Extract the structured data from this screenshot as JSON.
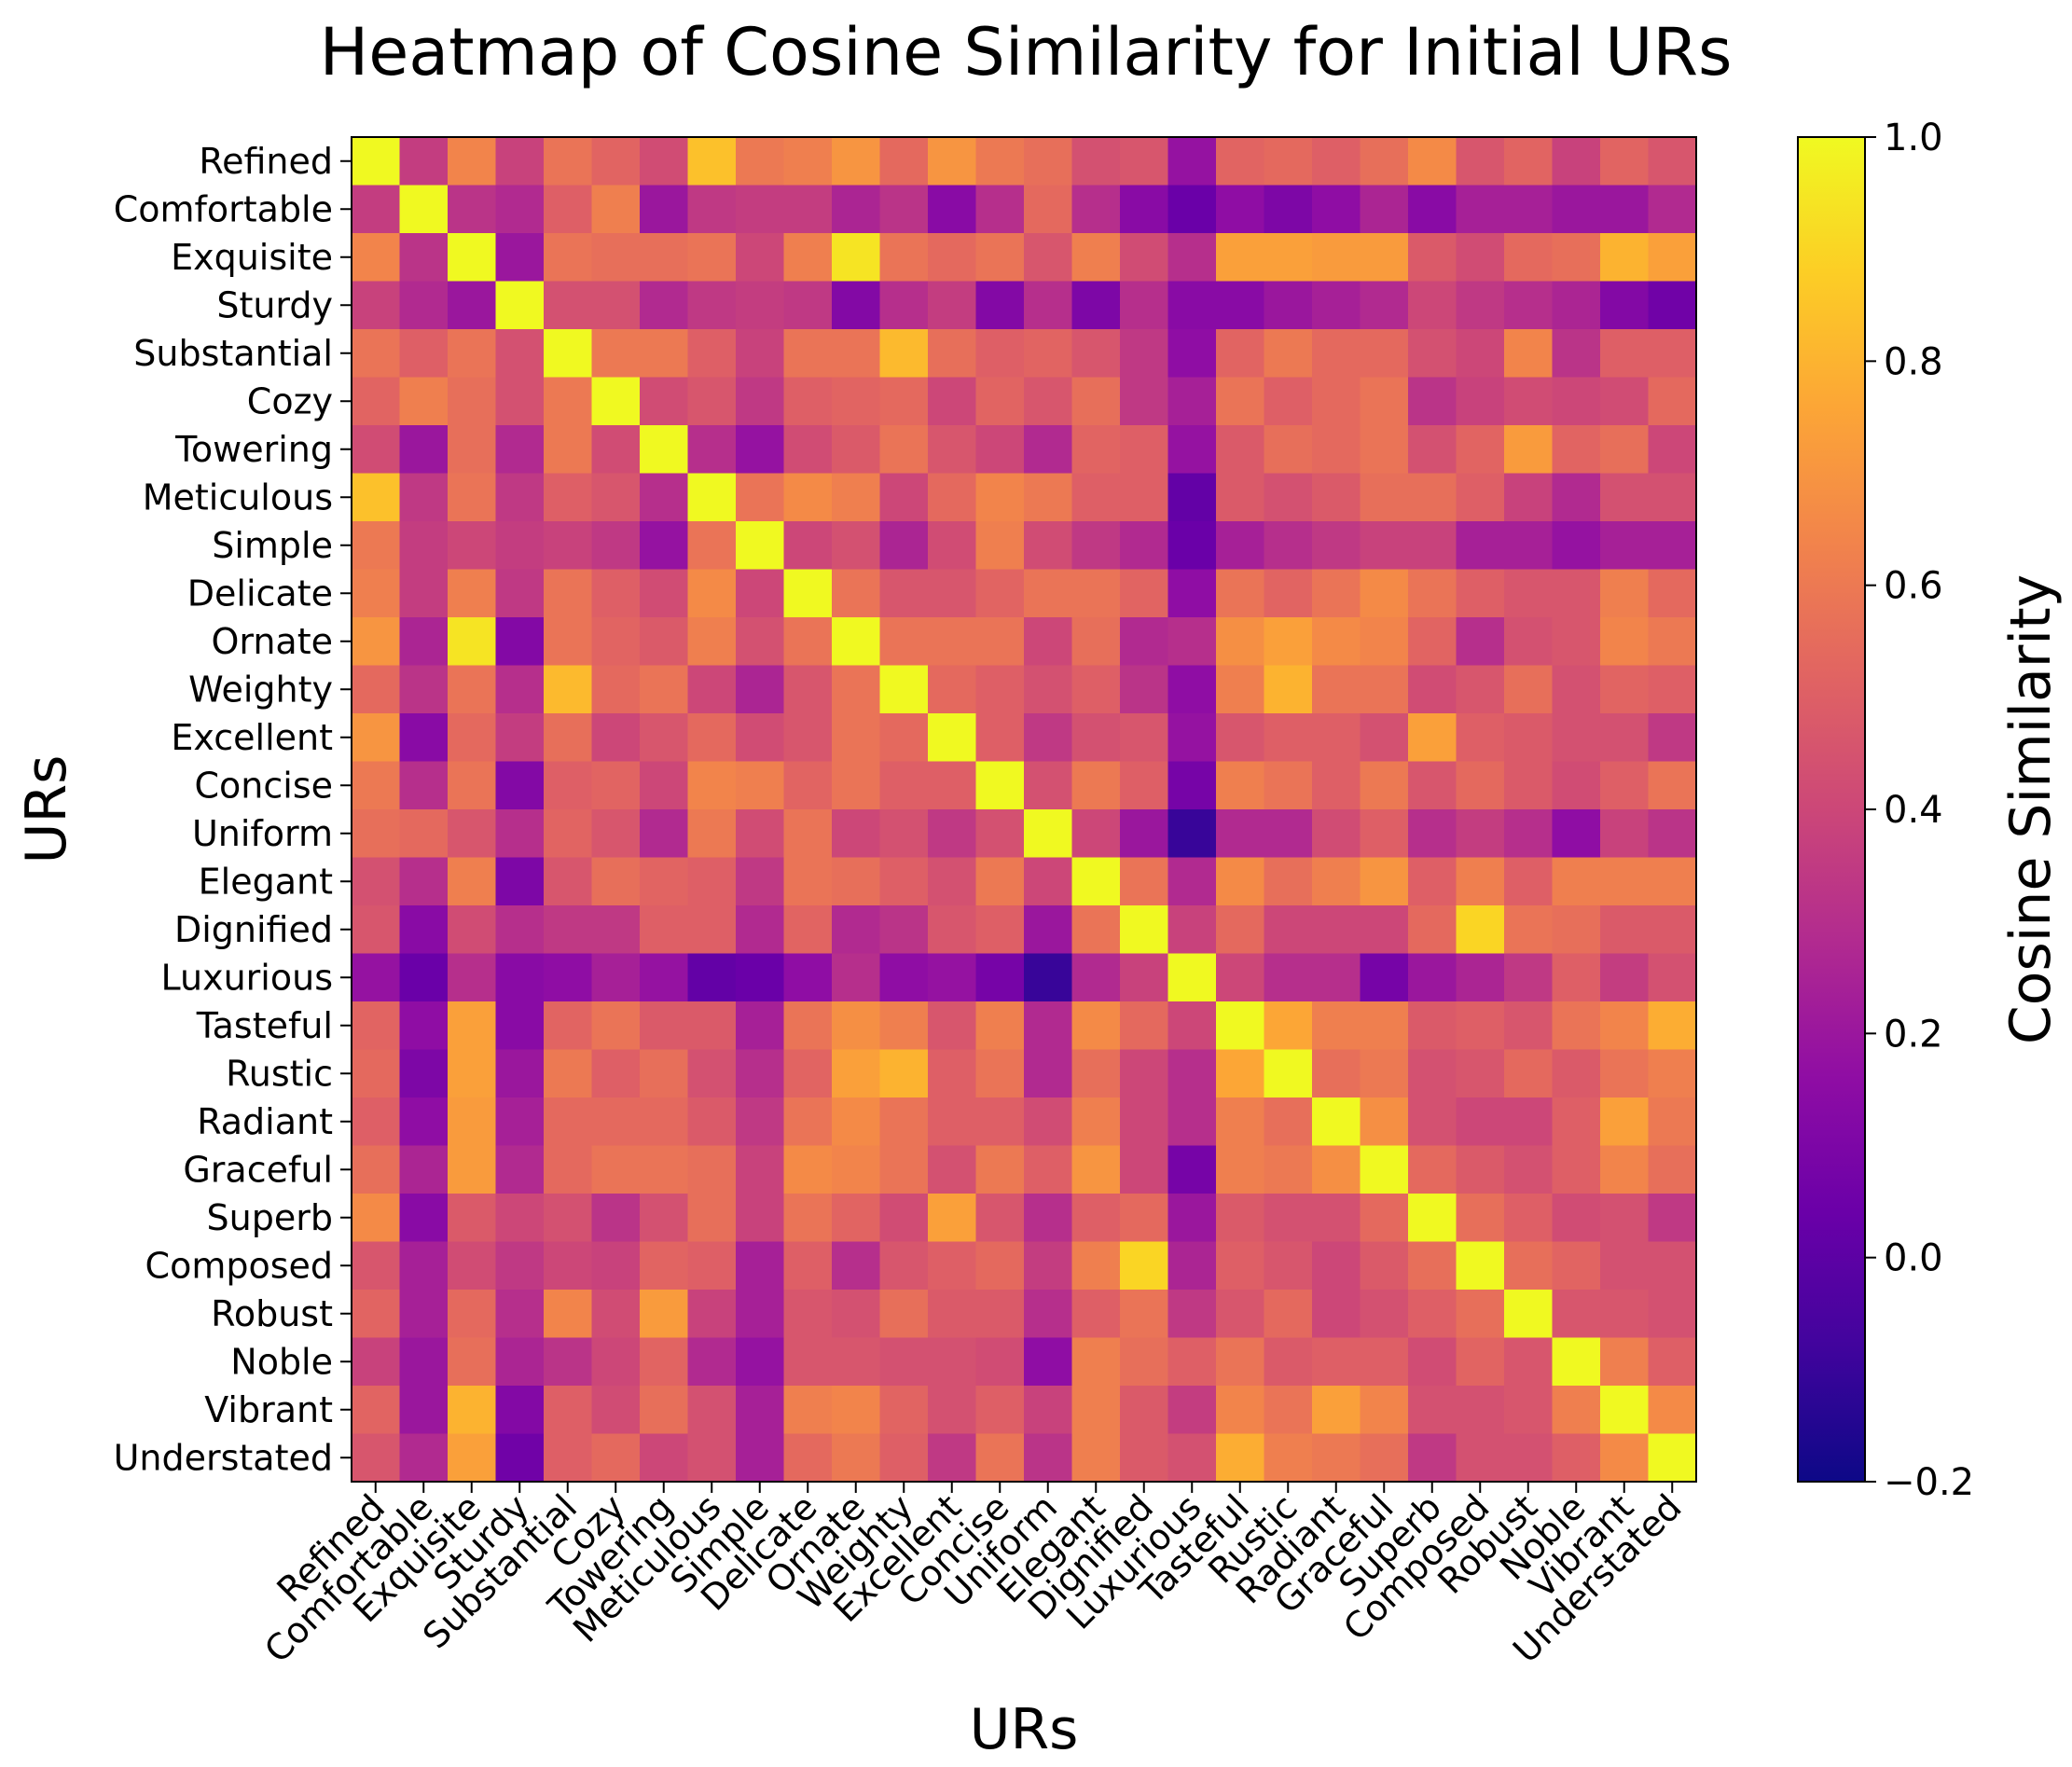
{
  "chart_data": {
    "type": "heatmap",
    "title": "Heatmap of Cosine Similarity for Initial URs",
    "xlabel": "URs",
    "ylabel": "URs",
    "colorbar_label": "Cosine Similarity",
    "colormap": "plasma",
    "vmin": -0.2,
    "vmax": 1.0,
    "colorbar_ticks": [
      "1.0",
      "0.8",
      "0.6",
      "0.4",
      "0.2",
      "0.0",
      "−0.2"
    ],
    "colorbar_tick_values": [
      1.0,
      0.8,
      0.6,
      0.4,
      0.2,
      0.0,
      -0.2
    ],
    "labels": [
      "Refined",
      "Comfortable",
      "Exquisite",
      "Sturdy",
      "Substantial",
      "Cozy",
      "Towering",
      "Meticulous",
      "Simple",
      "Delicate",
      "Ornate",
      "Weighty",
      "Excellent",
      "Concise",
      "Uniform",
      "Elegant",
      "Dignified",
      "Luxurious",
      "Tasteful",
      "Rustic",
      "Radiant",
      "Graceful",
      "Superb",
      "Composed",
      "Robust",
      "Noble",
      "Vibrant",
      "Understated"
    ],
    "matrix": [
      [
        1.0,
        0.36,
        0.64,
        0.38,
        0.58,
        0.52,
        0.42,
        0.84,
        0.6,
        0.62,
        0.7,
        0.54,
        0.7,
        0.6,
        0.56,
        0.44,
        0.46,
        0.18,
        0.52,
        0.54,
        0.5,
        0.56,
        0.66,
        0.46,
        0.52,
        0.38,
        0.52,
        0.46
      ],
      [
        0.36,
        1.0,
        0.32,
        0.28,
        0.5,
        0.62,
        0.2,
        0.34,
        0.36,
        0.36,
        0.26,
        0.32,
        0.14,
        0.3,
        0.54,
        0.3,
        0.14,
        0.04,
        0.16,
        0.1,
        0.16,
        0.26,
        0.14,
        0.24,
        0.24,
        0.2,
        0.2,
        0.28
      ],
      [
        0.64,
        0.32,
        1.0,
        0.2,
        0.58,
        0.56,
        0.56,
        0.58,
        0.4,
        0.62,
        0.94,
        0.58,
        0.54,
        0.58,
        0.46,
        0.62,
        0.42,
        0.3,
        0.74,
        0.74,
        0.72,
        0.72,
        0.48,
        0.42,
        0.54,
        0.56,
        0.8,
        0.74
      ],
      [
        0.38,
        0.28,
        0.2,
        1.0,
        0.44,
        0.44,
        0.28,
        0.34,
        0.36,
        0.34,
        0.12,
        0.3,
        0.36,
        0.12,
        0.3,
        0.1,
        0.3,
        0.14,
        0.14,
        0.2,
        0.24,
        0.28,
        0.4,
        0.34,
        0.3,
        0.26,
        0.12,
        0.06
      ],
      [
        0.58,
        0.5,
        0.58,
        0.44,
        1.0,
        0.6,
        0.6,
        0.5,
        0.38,
        0.58,
        0.58,
        0.82,
        0.56,
        0.5,
        0.52,
        0.46,
        0.34,
        0.16,
        0.52,
        0.6,
        0.54,
        0.54,
        0.44,
        0.4,
        0.64,
        0.32,
        0.5,
        0.5
      ],
      [
        0.52,
        0.62,
        0.56,
        0.44,
        0.6,
        1.0,
        0.42,
        0.46,
        0.34,
        0.5,
        0.52,
        0.54,
        0.4,
        0.52,
        0.46,
        0.56,
        0.34,
        0.24,
        0.58,
        0.5,
        0.54,
        0.58,
        0.32,
        0.38,
        0.42,
        0.4,
        0.42,
        0.54
      ],
      [
        0.42,
        0.2,
        0.56,
        0.28,
        0.6,
        0.42,
        1.0,
        0.3,
        0.18,
        0.42,
        0.48,
        0.58,
        0.46,
        0.4,
        0.28,
        0.52,
        0.5,
        0.18,
        0.48,
        0.56,
        0.54,
        0.58,
        0.44,
        0.52,
        0.72,
        0.52,
        0.56,
        0.4
      ],
      [
        0.84,
        0.34,
        0.58,
        0.34,
        0.5,
        0.46,
        0.3,
        1.0,
        0.58,
        0.66,
        0.62,
        0.4,
        0.54,
        0.64,
        0.6,
        0.5,
        0.5,
        0.02,
        0.48,
        0.44,
        0.48,
        0.56,
        0.56,
        0.5,
        0.38,
        0.28,
        0.44,
        0.44
      ],
      [
        0.6,
        0.36,
        0.4,
        0.36,
        0.38,
        0.34,
        0.18,
        0.58,
        1.0,
        0.4,
        0.44,
        0.26,
        0.42,
        0.62,
        0.42,
        0.34,
        0.28,
        0.04,
        0.24,
        0.3,
        0.34,
        0.38,
        0.38,
        0.24,
        0.24,
        0.18,
        0.24,
        0.24
      ],
      [
        0.62,
        0.36,
        0.62,
        0.34,
        0.58,
        0.5,
        0.42,
        0.66,
        0.4,
        1.0,
        0.58,
        0.46,
        0.46,
        0.52,
        0.58,
        0.58,
        0.52,
        0.16,
        0.58,
        0.52,
        0.58,
        0.66,
        0.58,
        0.5,
        0.46,
        0.46,
        0.62,
        0.54
      ],
      [
        0.7,
        0.26,
        0.94,
        0.12,
        0.58,
        0.52,
        0.48,
        0.62,
        0.44,
        0.58,
        1.0,
        0.58,
        0.58,
        0.58,
        0.4,
        0.56,
        0.28,
        0.3,
        0.68,
        0.74,
        0.66,
        0.64,
        0.52,
        0.3,
        0.44,
        0.46,
        0.64,
        0.6
      ],
      [
        0.54,
        0.32,
        0.58,
        0.3,
        0.82,
        0.54,
        0.58,
        0.4,
        0.26,
        0.46,
        0.58,
        1.0,
        0.54,
        0.5,
        0.44,
        0.5,
        0.32,
        0.16,
        0.62,
        0.8,
        0.58,
        0.58,
        0.42,
        0.46,
        0.56,
        0.44,
        0.52,
        0.5
      ],
      [
        0.7,
        0.14,
        0.54,
        0.36,
        0.56,
        0.4,
        0.46,
        0.54,
        0.42,
        0.46,
        0.58,
        0.54,
        1.0,
        0.5,
        0.34,
        0.44,
        0.46,
        0.18,
        0.46,
        0.5,
        0.5,
        0.44,
        0.74,
        0.5,
        0.48,
        0.44,
        0.44,
        0.34
      ],
      [
        0.6,
        0.3,
        0.58,
        0.12,
        0.5,
        0.52,
        0.4,
        0.64,
        0.62,
        0.52,
        0.58,
        0.5,
        0.5,
        1.0,
        0.44,
        0.6,
        0.5,
        0.08,
        0.62,
        0.58,
        0.5,
        0.6,
        0.46,
        0.54,
        0.48,
        0.42,
        0.5,
        0.58
      ],
      [
        0.56,
        0.54,
        0.46,
        0.3,
        0.52,
        0.46,
        0.28,
        0.6,
        0.42,
        0.58,
        0.4,
        0.44,
        0.34,
        0.44,
        1.0,
        0.4,
        0.2,
        -0.1,
        0.28,
        0.28,
        0.42,
        0.5,
        0.3,
        0.36,
        0.3,
        0.16,
        0.38,
        0.32
      ],
      [
        0.44,
        0.3,
        0.62,
        0.1,
        0.46,
        0.56,
        0.52,
        0.5,
        0.34,
        0.58,
        0.56,
        0.5,
        0.44,
        0.6,
        0.4,
        1.0,
        0.58,
        0.28,
        0.66,
        0.56,
        0.62,
        0.7,
        0.5,
        0.62,
        0.5,
        0.62,
        0.62,
        0.62
      ],
      [
        0.46,
        0.14,
        0.42,
        0.3,
        0.34,
        0.34,
        0.5,
        0.5,
        0.28,
        0.52,
        0.28,
        0.32,
        0.46,
        0.5,
        0.2,
        0.58,
        1.0,
        0.38,
        0.54,
        0.4,
        0.4,
        0.4,
        0.54,
        0.9,
        0.58,
        0.56,
        0.48,
        0.48
      ],
      [
        0.18,
        0.04,
        0.3,
        0.14,
        0.16,
        0.24,
        0.18,
        0.02,
        0.04,
        0.16,
        0.3,
        0.16,
        0.18,
        0.08,
        -0.1,
        0.28,
        0.38,
        1.0,
        0.4,
        0.3,
        0.3,
        0.08,
        0.2,
        0.26,
        0.34,
        0.5,
        0.36,
        0.44
      ],
      [
        0.52,
        0.16,
        0.74,
        0.14,
        0.52,
        0.58,
        0.48,
        0.48,
        0.24,
        0.58,
        0.68,
        0.62,
        0.46,
        0.62,
        0.28,
        0.66,
        0.54,
        0.4,
        1.0,
        0.76,
        0.62,
        0.62,
        0.48,
        0.5,
        0.46,
        0.58,
        0.64,
        0.78
      ],
      [
        0.54,
        0.1,
        0.74,
        0.2,
        0.6,
        0.5,
        0.56,
        0.44,
        0.3,
        0.52,
        0.74,
        0.8,
        0.5,
        0.58,
        0.28,
        0.56,
        0.4,
        0.3,
        0.76,
        1.0,
        0.56,
        0.6,
        0.44,
        0.46,
        0.54,
        0.48,
        0.58,
        0.62
      ],
      [
        0.5,
        0.16,
        0.72,
        0.24,
        0.54,
        0.54,
        0.54,
        0.48,
        0.34,
        0.58,
        0.66,
        0.58,
        0.5,
        0.5,
        0.42,
        0.62,
        0.4,
        0.3,
        0.62,
        0.56,
        1.0,
        0.68,
        0.44,
        0.4,
        0.4,
        0.5,
        0.74,
        0.6
      ],
      [
        0.56,
        0.26,
        0.72,
        0.28,
        0.54,
        0.58,
        0.58,
        0.56,
        0.38,
        0.66,
        0.64,
        0.58,
        0.44,
        0.6,
        0.5,
        0.7,
        0.4,
        0.08,
        0.62,
        0.6,
        0.68,
        1.0,
        0.54,
        0.48,
        0.44,
        0.5,
        0.64,
        0.56
      ],
      [
        0.66,
        0.14,
        0.48,
        0.4,
        0.44,
        0.32,
        0.44,
        0.56,
        0.38,
        0.58,
        0.52,
        0.42,
        0.74,
        0.46,
        0.3,
        0.5,
        0.54,
        0.2,
        0.48,
        0.44,
        0.44,
        0.54,
        1.0,
        0.56,
        0.5,
        0.42,
        0.44,
        0.34
      ],
      [
        0.46,
        0.24,
        0.42,
        0.34,
        0.4,
        0.38,
        0.52,
        0.5,
        0.24,
        0.5,
        0.3,
        0.46,
        0.5,
        0.54,
        0.36,
        0.62,
        0.9,
        0.26,
        0.5,
        0.46,
        0.4,
        0.48,
        0.56,
        1.0,
        0.56,
        0.52,
        0.44,
        0.44
      ],
      [
        0.52,
        0.24,
        0.54,
        0.3,
        0.64,
        0.42,
        0.72,
        0.38,
        0.24,
        0.46,
        0.44,
        0.56,
        0.48,
        0.48,
        0.3,
        0.5,
        0.58,
        0.34,
        0.46,
        0.54,
        0.4,
        0.44,
        0.5,
        0.56,
        1.0,
        0.46,
        0.46,
        0.44
      ],
      [
        0.38,
        0.2,
        0.56,
        0.26,
        0.32,
        0.4,
        0.52,
        0.28,
        0.18,
        0.46,
        0.46,
        0.44,
        0.44,
        0.42,
        0.16,
        0.62,
        0.56,
        0.5,
        0.58,
        0.48,
        0.5,
        0.5,
        0.42,
        0.52,
        0.46,
        1.0,
        0.62,
        0.5
      ],
      [
        0.52,
        0.2,
        0.8,
        0.12,
        0.5,
        0.42,
        0.56,
        0.44,
        0.24,
        0.62,
        0.64,
        0.52,
        0.44,
        0.5,
        0.38,
        0.62,
        0.48,
        0.36,
        0.64,
        0.58,
        0.74,
        0.64,
        0.44,
        0.44,
        0.46,
        0.62,
        1.0,
        0.66
      ],
      [
        0.46,
        0.28,
        0.74,
        0.06,
        0.5,
        0.54,
        0.4,
        0.44,
        0.24,
        0.54,
        0.6,
        0.5,
        0.34,
        0.58,
        0.32,
        0.62,
        0.48,
        0.44,
        0.78,
        0.62,
        0.6,
        0.56,
        0.34,
        0.44,
        0.44,
        0.5,
        0.66,
        1.0
      ]
    ]
  }
}
